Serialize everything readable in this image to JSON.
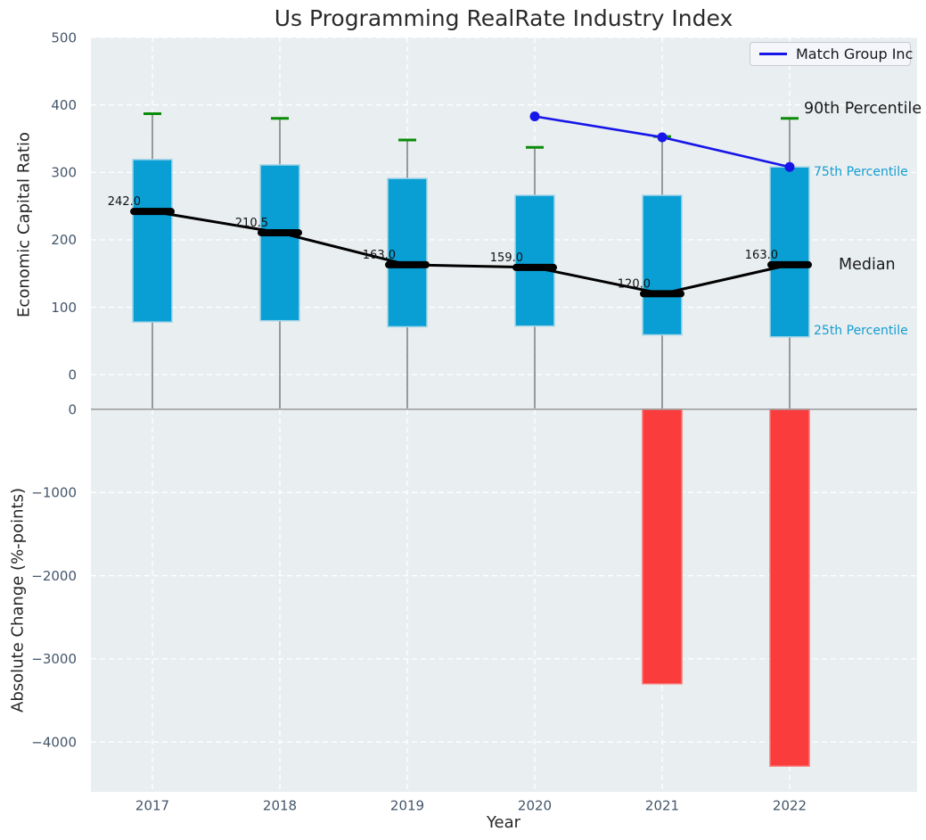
{
  "title": "Us Programming RealRate Industry Index",
  "legend": {
    "label": "Match Group Inc"
  },
  "annotations": {
    "p90": "90th Percentile",
    "p75": "75th Percentile",
    "median": "Median",
    "p25": "25th Percentile"
  },
  "axes": {
    "top": {
      "ylabel": "Economic Capital Ratio",
      "yticks": [
        500,
        400,
        300,
        200,
        100,
        0
      ],
      "ylim": [
        -50,
        500
      ]
    },
    "bottom": {
      "ylabel": "Absolute Change (%-points)",
      "yticks": [
        0,
        -1000,
        -2000,
        -3000,
        -4000
      ],
      "ylim": [
        -4600,
        0
      ]
    },
    "xlabel": "Year"
  },
  "colors": {
    "plot_bg": "#e9eef0",
    "grid": "#ffffff",
    "box_fill": "#099fd4",
    "box_edge": "#a5d5e8",
    "p90_cap": "#0a8c0a",
    "stem": "#606060",
    "median_line": "#000000",
    "company_line": "#1616e8",
    "bar_fill": "#fa3c3c",
    "bar_edge": "#fb7474",
    "boundary": "#9b9b9b",
    "tick_text": "#44566b",
    "cyan_text": "#149dd3"
  },
  "chart_data": {
    "type": "box+line+bar",
    "title": "Us Programming RealRate Industry Index",
    "xlabel": "Year",
    "categories": [
      "2017",
      "2018",
      "2019",
      "2020",
      "2021",
      "2022"
    ],
    "grid": "on",
    "legend_position": "top-right",
    "top_panel": {
      "ylabel": "Economic Capital Ratio",
      "ylim": [
        -50,
        500
      ],
      "box": {
        "p90": [
          387,
          380,
          348,
          337,
          353,
          380
        ],
        "p75": [
          319,
          311,
          291,
          266,
          266,
          308
        ],
        "median": [
          242.0,
          210.5,
          163.0,
          159.0,
          120.0,
          163.0
        ],
        "p25": [
          78,
          80,
          71,
          72,
          59,
          56
        ],
        "median_labels": [
          "242.0",
          "210.5",
          "163.0",
          "159.0",
          "120.0",
          "163.0"
        ]
      },
      "series": [
        {
          "name": "Match Group Inc",
          "x": [
            "2020",
            "2021",
            "2022"
          ],
          "values": [
            383,
            352,
            308
          ]
        }
      ]
    },
    "bottom_panel": {
      "ylabel": "Absolute Change (%-points)",
      "ylim": [
        -4600,
        0
      ],
      "bars": {
        "x": [
          "2021",
          "2022"
        ],
        "values": [
          -3300,
          -4290
        ]
      }
    }
  }
}
